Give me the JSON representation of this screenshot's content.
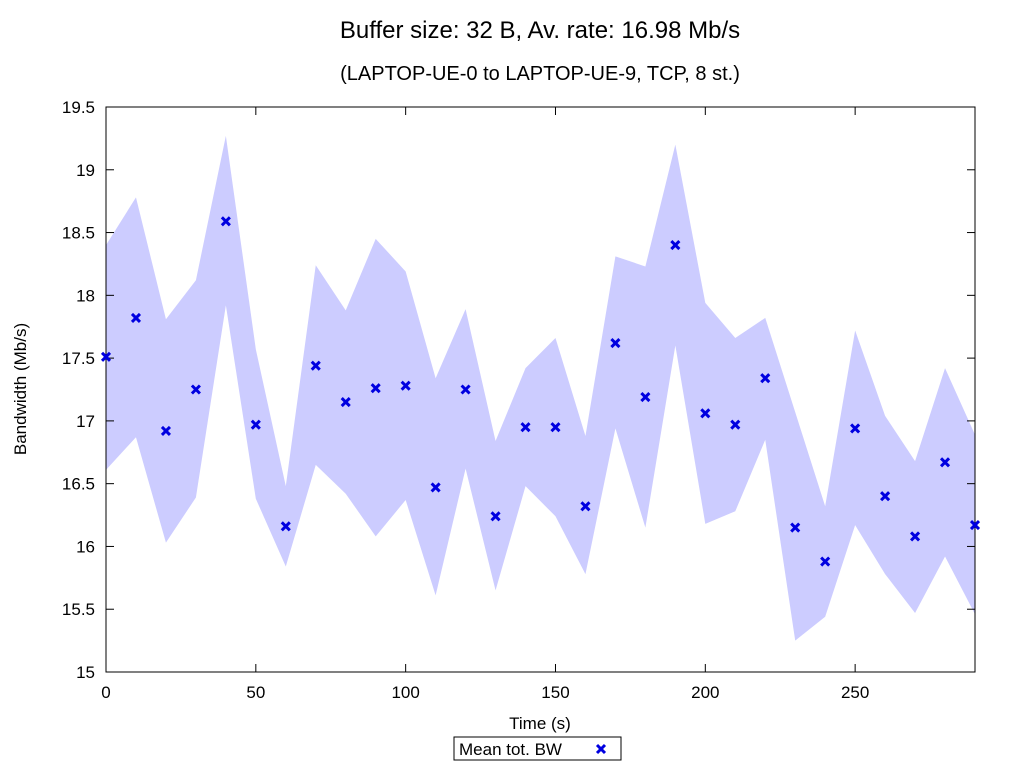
{
  "chart_data": {
    "type": "scatter",
    "title": "Buffer size: 32 B, Av. rate: 16.98 Mb/s",
    "subtitle": "(LAPTOP-UE-0 to LAPTOP-UE-9, TCP, 8 st.)",
    "xlabel": "Time (s)",
    "ylabel": "Bandwidth (Mb/s)",
    "xlim": [
      0,
      290
    ],
    "ylim": [
      15,
      19.5
    ],
    "x_ticks": [
      0,
      50,
      100,
      150,
      200,
      250
    ],
    "y_ticks": [
      15,
      15.5,
      16,
      16.5,
      17,
      17.5,
      18,
      18.5,
      19,
      19.5
    ],
    "x_tick_labels": [
      "0",
      "50",
      "100",
      "150",
      "200",
      "250"
    ],
    "y_tick_labels": [
      "15",
      "15.5",
      "16",
      "16.5",
      "17",
      "17.5",
      "18",
      "18.5",
      "19",
      "19.5"
    ],
    "grid": false,
    "legend_position": "bottom-center",
    "series": [
      {
        "name": "Mean tot. BW",
        "color": "#0000e0",
        "marker": "x",
        "x": [
          0,
          10,
          20,
          30,
          40,
          50,
          60,
          70,
          80,
          90,
          100,
          110,
          120,
          130,
          140,
          150,
          160,
          170,
          180,
          190,
          200,
          210,
          220,
          230,
          240,
          250,
          260,
          270,
          280,
          290
        ],
        "y": [
          17.51,
          17.82,
          16.92,
          17.25,
          18.59,
          16.97,
          16.16,
          17.44,
          17.15,
          17.26,
          17.28,
          16.47,
          17.25,
          16.24,
          16.95,
          16.95,
          16.32,
          17.62,
          17.19,
          18.4,
          17.06,
          16.97,
          17.34,
          16.15,
          15.88,
          16.94,
          16.4,
          16.08,
          16.67,
          16.17
        ]
      }
    ],
    "band": {
      "color": "#ccccff",
      "x": [
        0,
        10,
        20,
        30,
        40,
        50,
        60,
        70,
        80,
        90,
        100,
        110,
        120,
        130,
        140,
        150,
        160,
        170,
        180,
        190,
        200,
        210,
        220,
        230,
        240,
        250,
        260,
        270,
        280,
        290
      ],
      "upper": [
        18.4,
        18.78,
        17.81,
        18.12,
        19.27,
        17.57,
        16.48,
        18.24,
        17.88,
        18.45,
        18.19,
        17.34,
        17.89,
        16.84,
        17.42,
        17.66,
        16.88,
        18.31,
        18.23,
        19.2,
        17.94,
        17.66,
        17.82,
        17.07,
        16.32,
        17.72,
        17.04,
        16.68,
        17.42,
        16.89
      ],
      "lower": [
        16.61,
        16.87,
        16.03,
        16.39,
        17.92,
        16.38,
        15.84,
        16.65,
        16.42,
        16.08,
        16.37,
        15.61,
        16.62,
        15.65,
        16.48,
        16.24,
        15.78,
        16.94,
        16.15,
        17.6,
        16.18,
        16.28,
        16.85,
        15.25,
        15.44,
        16.17,
        15.78,
        15.47,
        15.92,
        15.46
      ]
    }
  }
}
